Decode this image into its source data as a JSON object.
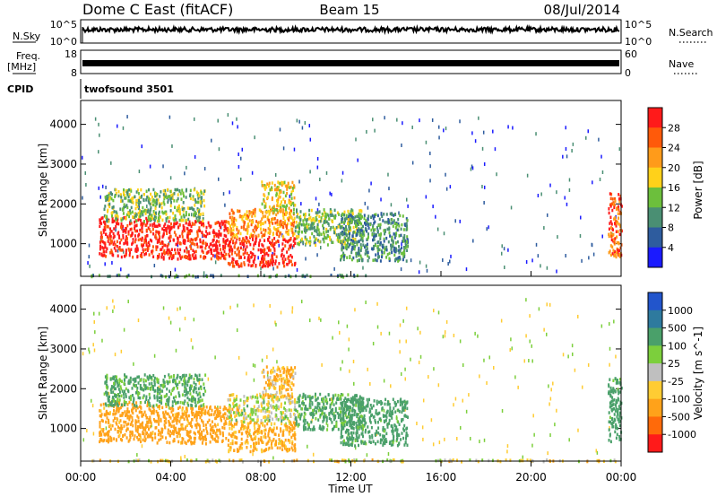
{
  "header": {
    "station": "Dome C East (fitACF)",
    "beam": "Beam 15",
    "date": "08/Jul/2014"
  },
  "status": {
    "nsky_label": "N.Sky",
    "nsky_ticks": [
      "10^5",
      "10^0"
    ],
    "nsearch_label": "N.Search",
    "nsearch_ticks": [
      "10^5",
      "10^0"
    ],
    "freq_label_1": "Freq.",
    "freq_label_2": "[MHz]",
    "freq_ticks": [
      "18",
      "8"
    ],
    "nave_label": "Nave",
    "nave_ticks": [
      "60",
      "0"
    ],
    "cpid_label": "CPID",
    "cpid_value": "twofsound 3501"
  },
  "x_axis": {
    "label": "Time UT",
    "ticks": [
      "00:00",
      "04:00",
      "08:00",
      "12:00",
      "16:00",
      "20:00",
      "00:00"
    ]
  },
  "colors": {
    "power": [
      "#1a1aff",
      "#2e5c9e",
      "#4a8f73",
      "#6cbf3c",
      "#ffd11a",
      "#ff9b1a",
      "#ff5a0a",
      "#ff1a1a"
    ],
    "velocity": [
      "#2255cc",
      "#2e7a9e",
      "#4aa06a",
      "#7ccf3c",
      "#bfbfbf",
      "#ffcc33",
      "#ffa21a",
      "#ff6a0a",
      "#ff1a1a"
    ]
  },
  "chart_data": [
    {
      "type": "heatmap",
      "title": "",
      "xlabel": "Time UT",
      "ylabel": "Slant Range [km]",
      "x_range_hours": [
        0,
        24
      ],
      "ylim": [
        180,
        4600
      ],
      "yticks": [
        1000,
        2000,
        3000,
        4000
      ],
      "colorbar": {
        "label": "Power [dB]",
        "ticks": [
          "4",
          "8",
          "12",
          "16",
          "20",
          "24",
          "28"
        ],
        "range": [
          0,
          32
        ]
      },
      "regions": [
        {
          "x": [
            0.3,
            12.8
          ],
          "y": [
            200,
            250
          ],
          "level": 2
        },
        {
          "x": [
            0.8,
            3.0
          ],
          "y": [
            700,
            1700
          ],
          "level": 7
        },
        {
          "x": [
            3.0,
            6.5
          ],
          "y": [
            650,
            1600
          ],
          "level": 7
        },
        {
          "x": [
            6.5,
            9.5
          ],
          "y": [
            450,
            1200
          ],
          "level": 7
        },
        {
          "x": [
            6.5,
            9.5
          ],
          "y": [
            1200,
            1900
          ],
          "level": 5
        },
        {
          "x": [
            1.0,
            5.5
          ],
          "y": [
            1600,
            2400
          ],
          "level": 3
        },
        {
          "x": [
            8.0,
            9.5
          ],
          "y": [
            1800,
            2600
          ],
          "level": 4
        },
        {
          "x": [
            9.5,
            12.5
          ],
          "y": [
            1000,
            1900
          ],
          "level": 3
        },
        {
          "x": [
            11.5,
            14.5
          ],
          "y": [
            600,
            1800
          ],
          "level": 2
        },
        {
          "x": [
            23.4,
            24.0
          ],
          "y": [
            700,
            2300
          ],
          "level": 6
        }
      ]
    },
    {
      "type": "heatmap",
      "title": "",
      "xlabel": "Time UT",
      "ylabel": "Slant Range [km]",
      "x_range_hours": [
        0,
        24
      ],
      "ylim": [
        180,
        4600
      ],
      "yticks": [
        1000,
        2000,
        3000,
        4000
      ],
      "colorbar": {
        "label": "Velocity [m s^-1]",
        "ticks": [
          "1000",
          "500",
          "100",
          "25",
          "-25",
          "-100",
          "-500",
          "-1000"
        ]
      },
      "regions": [
        {
          "x": [
            0.3,
            24.0
          ],
          "y": [
            200,
            250
          ],
          "level": -25
        },
        {
          "x": [
            0.8,
            3.0
          ],
          "y": [
            700,
            1700
          ],
          "level": -200
        },
        {
          "x": [
            3.0,
            6.5
          ],
          "y": [
            650,
            1600
          ],
          "level": -200
        },
        {
          "x": [
            6.5,
            9.5
          ],
          "y": [
            450,
            1200
          ],
          "level": -150
        },
        {
          "x": [
            6.5,
            9.5
          ],
          "y": [
            1200,
            1900
          ],
          "level": 0
        },
        {
          "x": [
            1.0,
            5.5
          ],
          "y": [
            1600,
            2400
          ],
          "level": 150
        },
        {
          "x": [
            8.0,
            9.5
          ],
          "y": [
            1800,
            2600
          ],
          "level": -100
        },
        {
          "x": [
            9.5,
            12.5
          ],
          "y": [
            1000,
            1900
          ],
          "level": 150
        },
        {
          "x": [
            11.5,
            14.5
          ],
          "y": [
            600,
            1800
          ],
          "level": 200
        },
        {
          "x": [
            23.4,
            24.0
          ],
          "y": [
            700,
            2300
          ],
          "level": 200
        }
      ]
    }
  ]
}
